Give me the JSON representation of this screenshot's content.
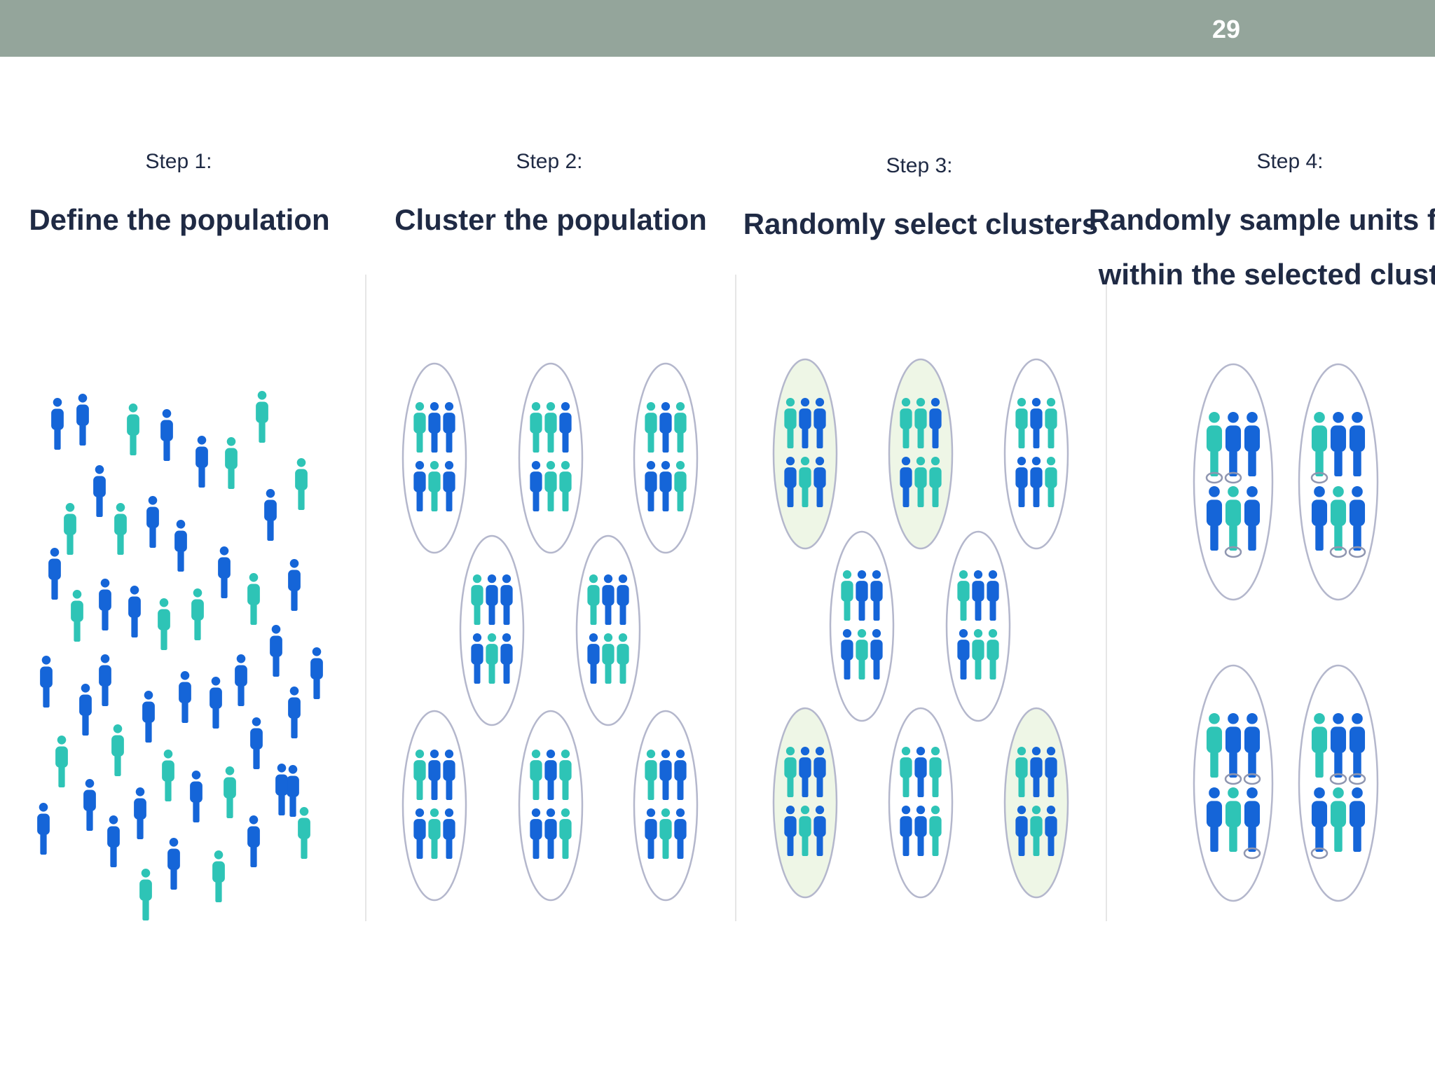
{
  "header": {
    "page_number": "29"
  },
  "colors": {
    "header_bar": "#94a59b",
    "person_blue": "#1565d8",
    "person_teal": "#2ec4b6",
    "cluster_outline": "#b4b7cc",
    "selected_fill": "#eef6e6",
    "divider": "#e6e6e6",
    "text": "#1f2a44"
  },
  "steps": [
    {
      "label": "Step 1:",
      "title": [
        "Define the population"
      ]
    },
    {
      "label": "Step 2:",
      "title": [
        "Cluster the population"
      ]
    },
    {
      "label": "Step 3:",
      "title": [
        "Randomly select clusters"
      ]
    },
    {
      "label": "Step 4:",
      "title": [
        "Randomly sample units from",
        "within the selected clusters"
      ]
    }
  ],
  "step3_selected_clusters": [
    true,
    true,
    false,
    false,
    false,
    true,
    false,
    true
  ]
}
